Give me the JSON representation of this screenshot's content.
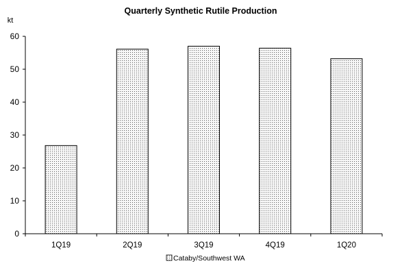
{
  "chart_data": {
    "type": "bar",
    "title": "Quarterly Synthetic Rutile Production",
    "ylabel": "kt",
    "xlabel": "",
    "categories": [
      "1Q19",
      "2Q19",
      "3Q19",
      "4Q19",
      "1Q20"
    ],
    "series": [
      {
        "name": "Cataby/Southwest WA",
        "values": [
          26.8,
          56.1,
          57.0,
          56.4,
          53.2
        ]
      }
    ],
    "ylim": [
      0,
      60
    ],
    "yticks": [
      "0",
      "10",
      "20",
      "30",
      "40",
      "50",
      "60"
    ],
    "grid": false,
    "legend_position": "bottom-center",
    "bar_fill": "#f2f2f2",
    "bar_pattern": "dotted",
    "bar_stroke": "#000000",
    "axis_color": "#000000"
  }
}
